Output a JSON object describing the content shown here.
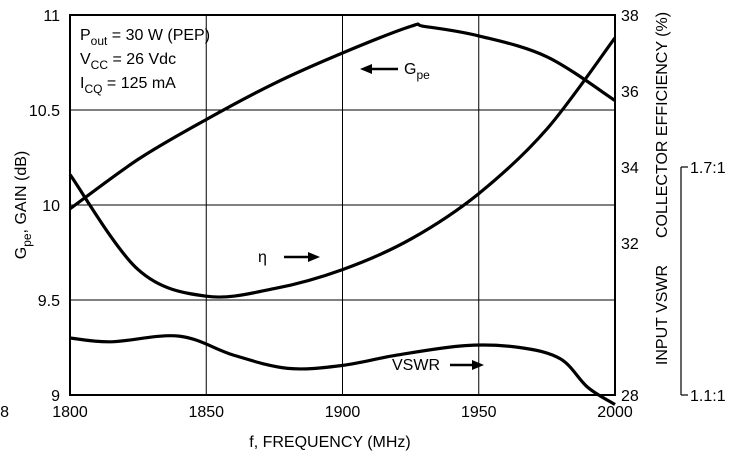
{
  "chart_data": {
    "type": "line",
    "xlabel": "f, FREQUENCY (MHz)",
    "ylabel_left": {
      "main": "G",
      "sub": "pe",
      "rest": ", GAIN (dB)"
    },
    "ylabel_right": "COLLECTOR EFFICIENCY (%)",
    "ylabel_vswr": "INPUT VSWR",
    "xlim": [
      1800,
      2000
    ],
    "ylim_left": [
      9,
      11
    ],
    "ylim_right": [
      28,
      38
    ],
    "x_ticks": [
      "1800",
      "1850",
      "1900",
      "1950",
      "2000"
    ],
    "x_tick_values": [
      1800,
      1850,
      1900,
      1950,
      2000
    ],
    "y_left_ticks": [
      "9",
      "9.5",
      "10",
      "10.5",
      "11"
    ],
    "y_left_tick_values": [
      9,
      9.5,
      10,
      10.5,
      11
    ],
    "y_right_ticks": [
      "28",
      "32",
      "34",
      "36",
      "38"
    ],
    "y_right_tick_values": [
      28,
      32,
      34,
      36,
      38
    ],
    "vswr_ticks": [
      "1.7:1",
      "1.1:1"
    ],
    "vswr_tick_positions_right_axis": [
      34,
      28
    ],
    "stray_tick_label": "8",
    "grid": true,
    "conditions": [
      {
        "main": "P",
        "sub": "out",
        "rest": " = 30 W (PEP)"
      },
      {
        "main": "V",
        "sub": "CC",
        "rest": " = 26 Vdc"
      },
      {
        "main": "I",
        "sub": "CQ",
        "rest": " = 125 mA"
      }
    ],
    "series": [
      {
        "name": "Gpe",
        "axis": "left",
        "label": {
          "main": "G",
          "sub": "pe"
        },
        "x": [
          1800,
          1825,
          1850,
          1875,
          1900,
          1925,
          1930,
          1950,
          1975,
          2000
        ],
        "y": [
          9.98,
          10.24,
          10.45,
          10.64,
          10.8,
          10.94,
          10.94,
          10.89,
          10.78,
          10.55
        ]
      },
      {
        "name": "η",
        "axis": "right",
        "label": {
          "main": "η"
        },
        "x": [
          1800,
          1825,
          1850,
          1875,
          1900,
          1925,
          1950,
          1975,
          2000
        ],
        "y": [
          33.8,
          31.3,
          30.6,
          30.8,
          31.3,
          32.1,
          33.3,
          35.0,
          37.4
        ]
      },
      {
        "name": "VSWR",
        "axis": "right",
        "label": {
          "main": "VSWR"
        },
        "x": [
          1800,
          1815,
          1840,
          1860,
          1880,
          1900,
          1920,
          1945,
          1965,
          1980,
          1990,
          2000
        ],
        "y": [
          29.5,
          29.4,
          29.55,
          29.05,
          28.7,
          28.78,
          29.05,
          29.3,
          29.25,
          28.95,
          28.2,
          27.75
        ]
      }
    ]
  }
}
